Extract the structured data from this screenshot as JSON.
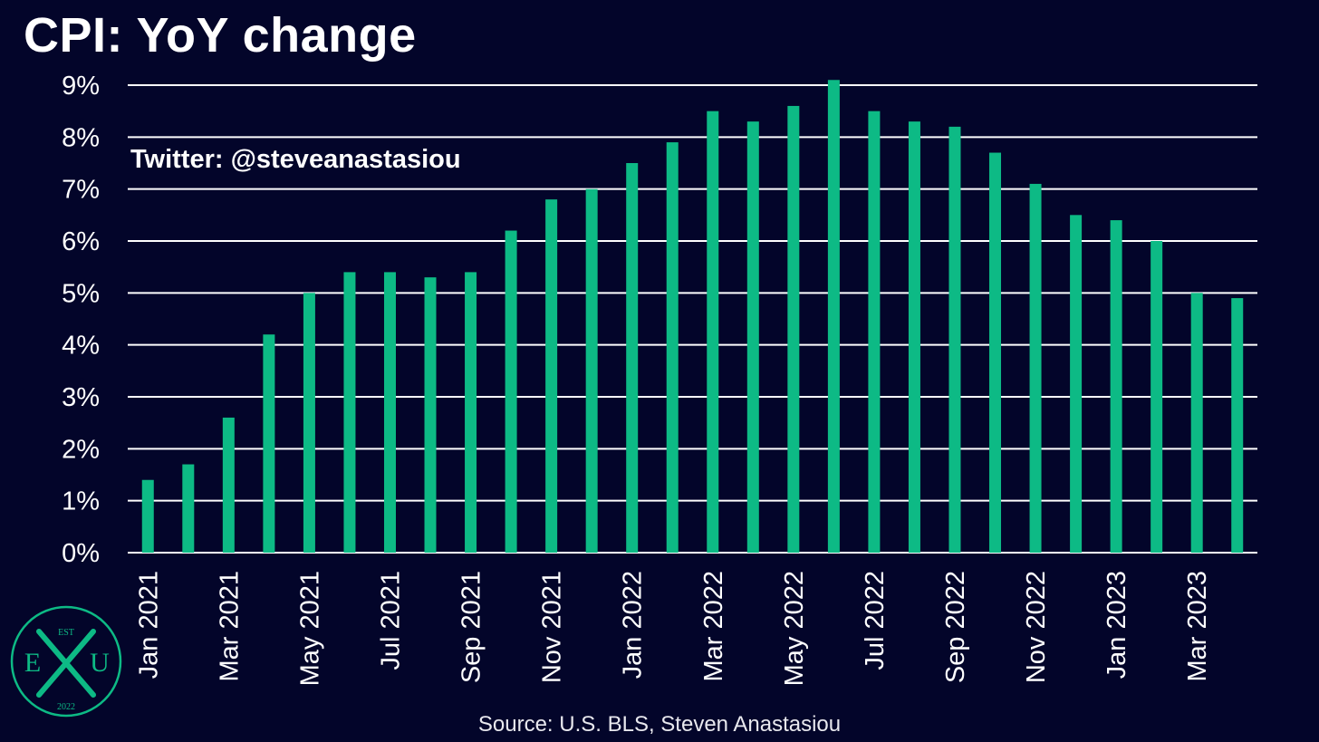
{
  "title": "CPI: YoY change",
  "watermark": "Twitter: @steveanastasiou",
  "source": "Source: U.S. BLS, Steven Anastasiou",
  "logo": {
    "est": "EST",
    "left_letter": "E",
    "right_letter": "U",
    "year": "2022",
    "color": "#0dba85"
  },
  "colors": {
    "background": "#03052a",
    "bar": "#0dba85",
    "text": "#ffffff"
  },
  "chart_data": {
    "type": "bar",
    "title": "CPI: YoY change",
    "ylim": [
      0,
      9
    ],
    "yticks": [
      "0%",
      "1%",
      "2%",
      "3%",
      "4%",
      "5%",
      "6%",
      "7%",
      "8%",
      "9%"
    ],
    "grid": true,
    "categories": [
      "Jan 2021",
      "Feb 2021",
      "Mar 2021",
      "Apr 2021",
      "May 2021",
      "Jun 2021",
      "Jul 2021",
      "Aug 2021",
      "Sep 2021",
      "Oct 2021",
      "Nov 2021",
      "Dec 2021",
      "Jan 2022",
      "Feb 2022",
      "Mar 2022",
      "Apr 2022",
      "May 2022",
      "Jun 2022",
      "Jul 2022",
      "Aug 2022",
      "Sep 2022",
      "Oct 2022",
      "Nov 2022",
      "Dec 2022",
      "Jan 2023",
      "Feb 2023",
      "Mar 2023",
      "Apr 2023"
    ],
    "xtick_labels": [
      "Jan 2021",
      "",
      "Mar 2021",
      "",
      "May 2021",
      "",
      "Jul 2021",
      "",
      "Sep 2021",
      "",
      "Nov 2021",
      "",
      "Jan 2022",
      "",
      "Mar 2022",
      "",
      "May 2022",
      "",
      "Jul 2022",
      "",
      "Sep 2022",
      "",
      "Nov 2022",
      "",
      "Jan 2023",
      "",
      "Mar 2023",
      ""
    ],
    "values": [
      1.4,
      1.7,
      2.6,
      4.2,
      5.0,
      5.4,
      5.4,
      5.3,
      5.4,
      6.2,
      6.8,
      7.0,
      7.5,
      7.9,
      8.5,
      8.3,
      8.6,
      9.1,
      8.5,
      8.3,
      8.2,
      7.7,
      7.1,
      6.5,
      6.4,
      6.0,
      5.0,
      4.9
    ]
  }
}
